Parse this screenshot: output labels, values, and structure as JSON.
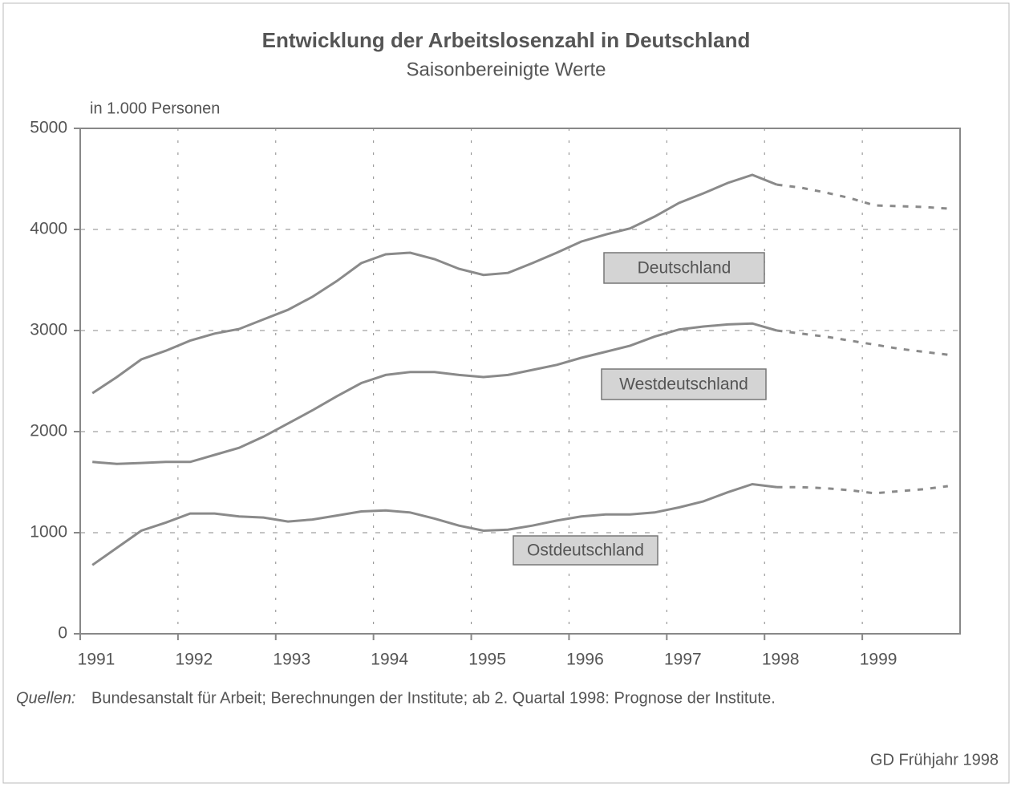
{
  "chart_data": {
    "type": "line",
    "title": "Entwicklung der Arbeitslosenzahl in Deutschland",
    "subtitle": "Saisonbereinigte Werte",
    "y_label": "in 1.000 Personen",
    "x": [
      1991.125,
      1991.375,
      1991.625,
      1991.875,
      1992.125,
      1992.375,
      1992.625,
      1992.875,
      1993.125,
      1993.375,
      1993.625,
      1993.875,
      1994.125,
      1994.375,
      1994.625,
      1994.875,
      1995.125,
      1995.375,
      1995.625,
      1995.875,
      1996.125,
      1996.375,
      1996.625,
      1996.875,
      1997.125,
      1997.375,
      1997.625,
      1997.875,
      1998.125,
      1998.375,
      1998.625,
      1998.875,
      1999.125,
      1999.375,
      1999.625,
      1999.875
    ],
    "series": [
      {
        "name": "Deutschland",
        "color": "#8a8a8a",
        "values": [
          2380,
          2540,
          2714,
          2800,
          2900,
          2970,
          3015,
          3110,
          3205,
          3333,
          3490,
          3667,
          3754,
          3770,
          3706,
          3610,
          3550,
          3570,
          3667,
          3770,
          3880,
          3950,
          4010,
          4127,
          4262,
          4357,
          4460,
          4540,
          4444,
          4413,
          4365,
          4310,
          4238,
          4230,
          4222,
          4206
        ]
      },
      {
        "name": "Westdeutschland",
        "color": "#8a8a8a",
        "values": [
          1700,
          1680,
          1690,
          1700,
          1700,
          1770,
          1840,
          1950,
          2080,
          2210,
          2350,
          2480,
          2560,
          2590,
          2590,
          2560,
          2540,
          2560,
          2610,
          2660,
          2730,
          2790,
          2850,
          2940,
          3010,
          3040,
          3060,
          3070,
          3000,
          2970,
          2940,
          2900,
          2860,
          2820,
          2790,
          2760
        ]
      },
      {
        "name": "Ostdeutschland",
        "color": "#8a8a8a",
        "values": [
          680,
          850,
          1020,
          1100,
          1190,
          1190,
          1160,
          1150,
          1110,
          1130,
          1170,
          1210,
          1220,
          1200,
          1140,
          1070,
          1020,
          1030,
          1070,
          1120,
          1160,
          1180,
          1180,
          1200,
          1250,
          1310,
          1400,
          1480,
          1450,
          1450,
          1440,
          1420,
          1390,
          1410,
          1430,
          1460
        ]
      }
    ],
    "forecast_from": 1998.375,
    "xlim": [
      1991,
      2000
    ],
    "xticks": [
      1991,
      1992,
      1993,
      1994,
      1995,
      1996,
      1997,
      1998,
      1999
    ],
    "ylim": [
      0,
      5000
    ],
    "yticks": [
      0,
      1000,
      2000,
      3000,
      4000,
      5000
    ],
    "grid": true,
    "source_label": "Quellen:",
    "source": "Bundesanstalt für Arbeit; Berechnungen der Institute; ab 2. Quartal 1998: Prognose der Institute.",
    "credit": "GD Frühjahr 1998"
  }
}
